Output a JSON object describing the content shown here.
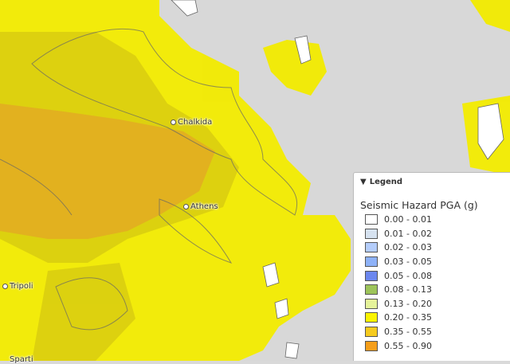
{
  "cities": [
    {
      "name": "Chalkida"
    },
    {
      "name": "Athens"
    },
    {
      "name": "Tripoli"
    },
    {
      "name": "Sparti"
    }
  ],
  "legend": {
    "toggle_label": "Legend",
    "toggle_icon": "triangle-down-icon",
    "title": "Seismic Hazard PGA (g)",
    "items": [
      {
        "label": "0.00 - 0.01",
        "color": "#ffffff"
      },
      {
        "label": "0.01 - 0.02",
        "color": "#d6e2f0"
      },
      {
        "label": "0.02 - 0.03",
        "color": "#b4cdfb"
      },
      {
        "label": "0.03 - 0.05",
        "color": "#8eb2f8"
      },
      {
        "label": "0.05 - 0.08",
        "color": "#6c87ef"
      },
      {
        "label": "0.08 - 0.13",
        "color": "#9dc45a"
      },
      {
        "label": "0.13 - 0.20",
        "color": "#e5f39a"
      },
      {
        "label": "0.20 - 0.35",
        "color": "#fbf400"
      },
      {
        "label": "0.35 - 0.55",
        "color": "#f6cb1e"
      },
      {
        "label": "0.55 - 0.90",
        "color": "#f59e1a"
      }
    ]
  }
}
